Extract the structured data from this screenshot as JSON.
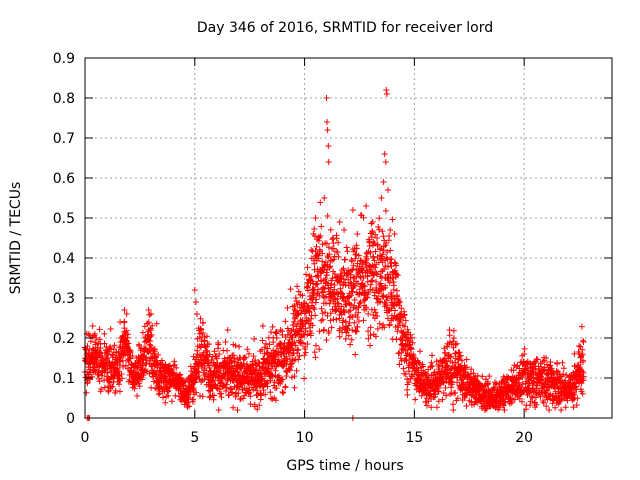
{
  "chart_data": {
    "type": "scatter",
    "title": "Day 346 of 2016, SRMTID for receiver lord",
    "xlabel": "GPS time / hours",
    "ylabel": "SRMTID / TECUs",
    "xlim": [
      0,
      24
    ],
    "ylim": [
      0,
      0.9
    ],
    "xticks": [
      0,
      5,
      10,
      15,
      20
    ],
    "yticks": [
      0,
      0.1,
      0.2,
      0.3,
      0.4,
      0.5,
      0.6,
      0.7,
      0.8,
      0.9
    ],
    "xtick_labels": [
      "0",
      "5",
      "10",
      "15",
      "20"
    ],
    "ytick_labels": [
      "0",
      "0.1",
      "0.2",
      "0.3",
      "0.4",
      "0.5",
      "0.6",
      "0.7",
      "0.8",
      "0.9"
    ],
    "grid": true,
    "marker": "+",
    "color": "#ff0000",
    "sample_interval_hours": 0.02,
    "points_per_sample": 3,
    "seed": 346,
    "profile": [
      [
        0.0,
        0.14,
        0.03
      ],
      [
        0.5,
        0.15,
        0.03
      ],
      [
        1.0,
        0.13,
        0.03
      ],
      [
        1.5,
        0.12,
        0.03
      ],
      [
        1.8,
        0.2,
        0.03
      ],
      [
        2.2,
        0.1,
        0.02
      ],
      [
        2.5,
        0.12,
        0.03
      ],
      [
        2.9,
        0.2,
        0.04
      ],
      [
        3.3,
        0.1,
        0.03
      ],
      [
        4.0,
        0.1,
        0.02
      ],
      [
        4.6,
        0.06,
        0.015
      ],
      [
        5.0,
        0.1,
        0.03
      ],
      [
        5.3,
        0.18,
        0.05
      ],
      [
        5.7,
        0.1,
        0.03
      ],
      [
        6.5,
        0.12,
        0.03
      ],
      [
        7.0,
        0.1,
        0.03
      ],
      [
        7.5,
        0.1,
        0.03
      ],
      [
        8.0,
        0.1,
        0.03
      ],
      [
        8.5,
        0.15,
        0.04
      ],
      [
        9.0,
        0.15,
        0.04
      ],
      [
        9.5,
        0.2,
        0.04
      ],
      [
        10.0,
        0.25,
        0.05
      ],
      [
        10.5,
        0.33,
        0.07
      ],
      [
        11.0,
        0.35,
        0.07
      ],
      [
        11.5,
        0.32,
        0.06
      ],
      [
        12.0,
        0.3,
        0.06
      ],
      [
        12.5,
        0.33,
        0.06
      ],
      [
        13.0,
        0.36,
        0.07
      ],
      [
        13.5,
        0.35,
        0.07
      ],
      [
        14.0,
        0.32,
        0.07
      ],
      [
        14.5,
        0.2,
        0.05
      ],
      [
        15.0,
        0.12,
        0.03
      ],
      [
        15.5,
        0.08,
        0.02
      ],
      [
        16.0,
        0.08,
        0.02
      ],
      [
        16.6,
        0.14,
        0.04
      ],
      [
        17.2,
        0.1,
        0.03
      ],
      [
        17.8,
        0.07,
        0.02
      ],
      [
        18.5,
        0.05,
        0.015
      ],
      [
        19.0,
        0.06,
        0.02
      ],
      [
        19.5,
        0.08,
        0.02
      ],
      [
        20.0,
        0.1,
        0.03
      ],
      [
        21.0,
        0.09,
        0.03
      ],
      [
        22.0,
        0.07,
        0.02
      ],
      [
        22.6,
        0.12,
        0.04
      ],
      [
        22.7,
        0.12,
        0.04
      ]
    ],
    "spikes": [
      [
        0.35,
        0.23
      ],
      [
        0.45,
        0.21
      ],
      [
        1.6,
        0.24
      ],
      [
        1.8,
        0.27
      ],
      [
        1.9,
        0.26
      ],
      [
        2.9,
        0.27
      ],
      [
        3.0,
        0.26
      ],
      [
        5.0,
        0.32
      ],
      [
        5.05,
        0.29
      ],
      [
        5.1,
        0.26
      ],
      [
        6.4,
        0.19
      ],
      [
        6.5,
        0.22
      ],
      [
        8.1,
        0.23
      ],
      [
        8.9,
        0.22
      ],
      [
        9.6,
        0.3
      ],
      [
        10.3,
        0.42
      ],
      [
        10.4,
        0.46
      ],
      [
        10.5,
        0.5
      ],
      [
        10.9,
        0.55
      ],
      [
        11.0,
        0.8
      ],
      [
        11.02,
        0.74
      ],
      [
        11.05,
        0.72
      ],
      [
        11.08,
        0.68
      ],
      [
        11.1,
        0.64
      ],
      [
        11.3,
        0.45
      ],
      [
        11.6,
        0.49
      ],
      [
        11.8,
        0.47
      ],
      [
        12.2,
        0.52
      ],
      [
        12.4,
        0.46
      ],
      [
        12.8,
        0.53
      ],
      [
        13.1,
        0.49
      ],
      [
        13.3,
        0.45
      ],
      [
        13.5,
        0.55
      ],
      [
        13.6,
        0.59
      ],
      [
        13.65,
        0.66
      ],
      [
        13.7,
        0.64
      ],
      [
        13.72,
        0.82
      ],
      [
        13.75,
        0.81
      ],
      [
        13.8,
        0.57
      ],
      [
        13.9,
        0.47
      ],
      [
        14.1,
        0.46
      ],
      [
        16.6,
        0.22
      ],
      [
        16.8,
        0.2
      ],
      [
        20.0,
        0.16
      ],
      [
        21.0,
        0.15
      ],
      [
        22.5,
        0.18
      ],
      [
        22.7,
        0.19
      ]
    ],
    "markers_on_axis": [
      0.1,
      0.15,
      0.2,
      12.2
    ]
  }
}
